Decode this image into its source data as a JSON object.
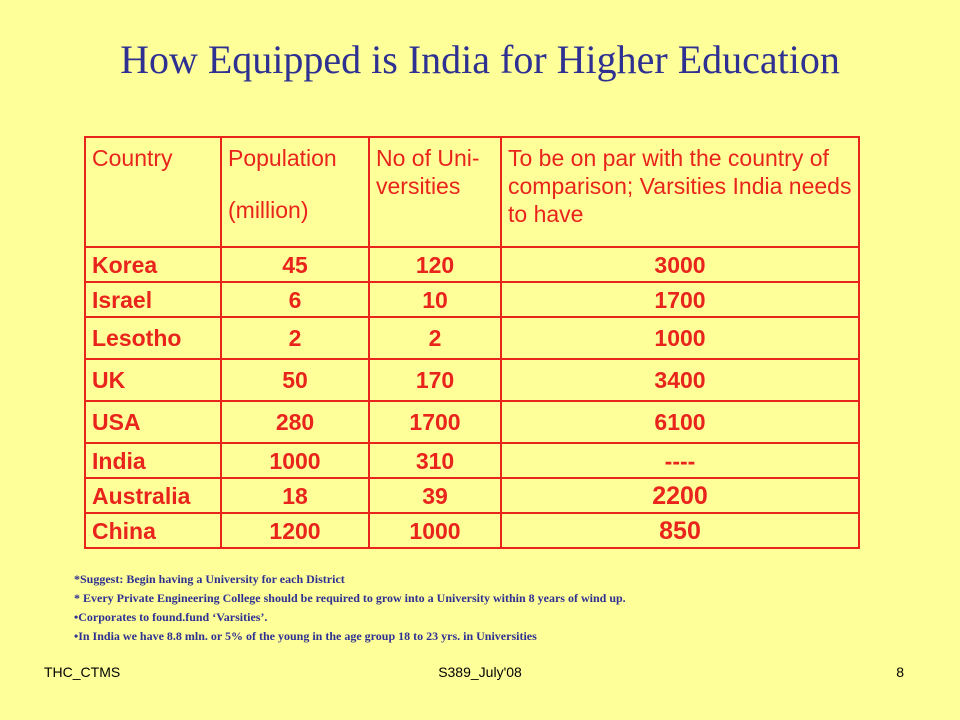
{
  "slide": {
    "title": "How Equipped is India for Higher Education",
    "footer": {
      "left": "THC_CTMS",
      "center": "S389_July'08",
      "right": "8"
    }
  },
  "table": {
    "headers": {
      "country": "Country",
      "population_line1": "Population",
      "population_line2": "(million)",
      "universities": "No of Uni-versities",
      "needed": "To be on par with the country of comparison; Varsities India needs to have"
    },
    "rows": [
      {
        "country": "Korea",
        "population": "45",
        "universities": "120",
        "needed": "3000"
      },
      {
        "country": "Israel",
        "population": "6",
        "universities": "10",
        "needed": "1700"
      },
      {
        "country": "Lesotho",
        "population": "2",
        "universities": "2",
        "needed": "1000"
      },
      {
        "country": "UK",
        "population": "50",
        "universities": "170",
        "needed": "3400"
      },
      {
        "country": "USA",
        "population": "280",
        "universities": "1700",
        "needed": "6100"
      },
      {
        "country": "India",
        "population": "1000",
        "universities": "310",
        "needed": "----"
      },
      {
        "country": "Australia",
        "population": "18",
        "universities": "39",
        "needed": "2200"
      },
      {
        "country": "China",
        "population": "1200",
        "universities": "1000",
        "needed": "850"
      }
    ]
  },
  "notes": [
    "*Suggest: Begin having a University for each District",
    "* Every Private Engineering College should be required to grow into a University within 8 years  of wind up.",
    "•Corporates to found.fund ‘Varsities’.",
    "•In India we have 8.8 mln. or 5% of  the young in the age group 18 to 23 yrs. in Universities"
  ]
}
